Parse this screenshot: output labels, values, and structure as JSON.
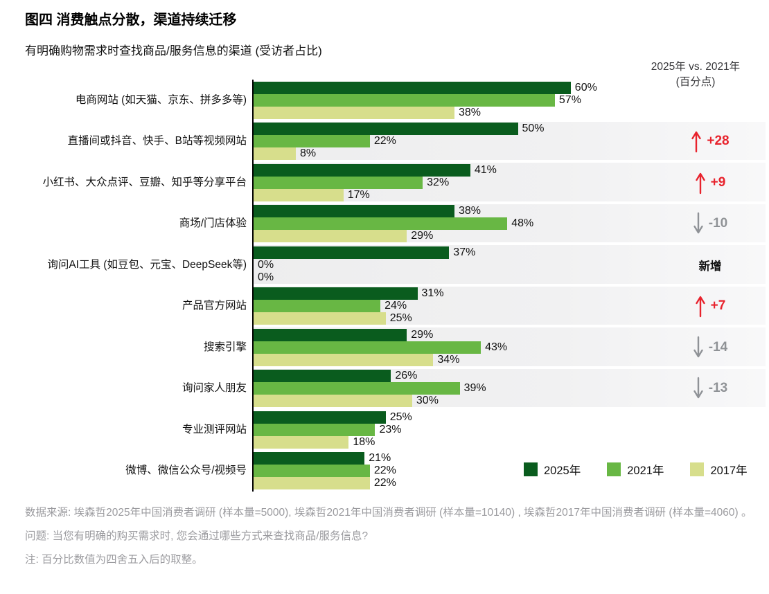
{
  "title": "图四 消费触点分散，渠道持续迁移",
  "subtitle": "有明确购物需求时查找商品/服务信息的渠道 (受访者占比)",
  "change_header": {
    "line1": "2025年 vs. 2021年",
    "line2": "(百分点)"
  },
  "legend": [
    {
      "label": "2025年",
      "color": "#0a5c1e"
    },
    {
      "label": "2021年",
      "color": "#68b744"
    },
    {
      "label": "2017年",
      "color": "#d7de8c"
    }
  ],
  "colors": {
    "increase_red": "#e8232d",
    "decrease_gray": "#8f9296",
    "axis_black": "#000000",
    "stripe_gray": "#f0f0f1",
    "footnote_gray": "#9b9b9f"
  },
  "chart_data": {
    "type": "bar",
    "orientation": "horizontal",
    "title": "图四 消费触点分散，渠道持续迁移",
    "subtitle": "有明确购物需求时查找商品/服务信息的渠道 (受访者占比)",
    "unit": "% of respondents",
    "xlim": [
      0,
      65
    ],
    "grid": false,
    "legend_position": "bottom-right",
    "series_names": [
      "2025年",
      "2021年",
      "2017年"
    ],
    "change_column_header": "2025年 vs. 2021年 (百分点)",
    "rows": [
      {
        "label": "电商网站 (如天猫、京东、拼多多等)",
        "values": [
          60,
          57,
          38
        ],
        "value_labels": [
          "60%",
          "57%",
          "38%"
        ],
        "change": null,
        "striped": false
      },
      {
        "label": "直播间或抖音、快手、B站等视频网站",
        "values": [
          50,
          22,
          8
        ],
        "value_labels": [
          "50%",
          "22%",
          "8%"
        ],
        "change": {
          "text": "+28",
          "dir": "up"
        },
        "striped": true
      },
      {
        "label": "小红书、大众点评、豆瓣、知乎等分享平台",
        "values": [
          41,
          32,
          17
        ],
        "value_labels": [
          "41%",
          "32%",
          "17%"
        ],
        "change": {
          "text": "+9",
          "dir": "up"
        },
        "striped": true
      },
      {
        "label": "商场/门店体验",
        "values": [
          38,
          48,
          29
        ],
        "value_labels": [
          "38%",
          "48%",
          "29%"
        ],
        "change": {
          "text": "-10",
          "dir": "down"
        },
        "striped": true
      },
      {
        "label": "询问AI工具 (如豆包、元宝、DeepSeek等)",
        "values": [
          37,
          0,
          0
        ],
        "value_labels": [
          "37%",
          "0%",
          "0%"
        ],
        "change": {
          "text": "新增",
          "dir": "new"
        },
        "striped": true
      },
      {
        "label": "产品官方网站",
        "values": [
          31,
          24,
          25
        ],
        "value_labels": [
          "31%",
          "24%",
          "25%"
        ],
        "change": {
          "text": "+7",
          "dir": "up"
        },
        "striped": true
      },
      {
        "label": "搜索引擎",
        "values": [
          29,
          43,
          34
        ],
        "value_labels": [
          "29%",
          "43%",
          "34%"
        ],
        "change": {
          "text": "-14",
          "dir": "down"
        },
        "striped": true
      },
      {
        "label": "询问家人朋友",
        "values": [
          26,
          39,
          30
        ],
        "value_labels": [
          "26%",
          "39%",
          "30%"
        ],
        "change": {
          "text": "-13",
          "dir": "down"
        },
        "striped": true
      },
      {
        "label": "专业测评网站",
        "values": [
          25,
          23,
          18
        ],
        "value_labels": [
          "25%",
          "23%",
          "18%"
        ],
        "change": null,
        "striped": false
      },
      {
        "label": "微博、微信公众号/视频号",
        "values": [
          21,
          22,
          22
        ],
        "value_labels": [
          "21%",
          "22%",
          "22%"
        ],
        "change": null,
        "striped": false
      }
    ]
  },
  "footnotes": [
    "数据来源: 埃森哲2025年中国消费者调研 (样本量=5000), 埃森哲2021年中国消费者调研 (样本量=10140) , 埃森哲2017年中国消费者调研 (样本量=4060) 。",
    "问题: 当您有明确的购买需求时, 您会通过哪些方式来查找商品/服务信息?",
    "注: 百分比数值为四舍五入后的取整。"
  ]
}
